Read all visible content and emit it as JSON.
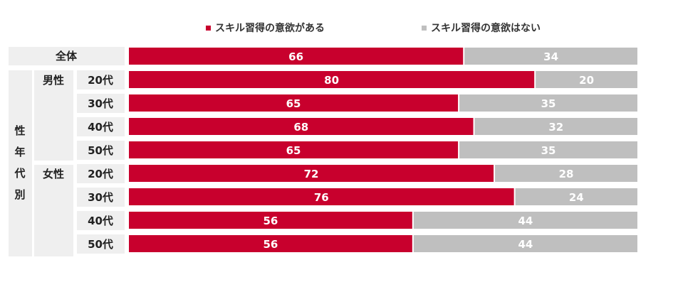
{
  "chart_data": {
    "type": "bar",
    "stacked": true,
    "orientation": "horizontal",
    "legend": [
      "スキル習得の意欲がある",
      "スキル習得の意欲はない"
    ],
    "colors": [
      "#c8002d",
      "#bfbfbf"
    ],
    "xlim": [
      0,
      100
    ],
    "labels": {
      "overall": "全体",
      "group_title": [
        "性",
        "年",
        "代",
        "別"
      ],
      "male": "男性",
      "female": "女性"
    },
    "rows": [
      {
        "category": "全体",
        "values": [
          66,
          34
        ]
      },
      {
        "gender": "男性",
        "age": "20代",
        "values": [
          80,
          20
        ]
      },
      {
        "gender": "男性",
        "age": "30代",
        "values": [
          65,
          35
        ]
      },
      {
        "gender": "男性",
        "age": "40代",
        "values": [
          68,
          32
        ]
      },
      {
        "gender": "男性",
        "age": "50代",
        "values": [
          65,
          35
        ]
      },
      {
        "gender": "女性",
        "age": "20代",
        "values": [
          72,
          28
        ]
      },
      {
        "gender": "女性",
        "age": "30代",
        "values": [
          76,
          24
        ]
      },
      {
        "gender": "女性",
        "age": "40代",
        "values": [
          56,
          44
        ]
      },
      {
        "gender": "女性",
        "age": "50代",
        "values": [
          56,
          44
        ]
      }
    ]
  }
}
